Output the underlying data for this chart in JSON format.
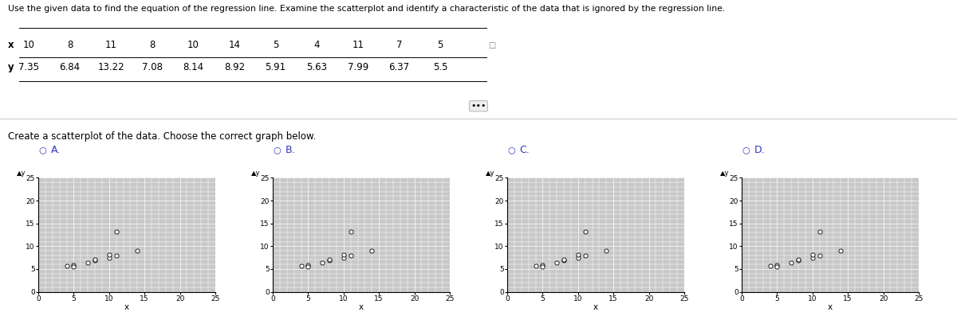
{
  "title_text": "Use the given data to find the equation of the regression line. Examine the scatterplot and identify a characteristic of the data that is ignored by the regression line.",
  "instruction": "Create a scatterplot of the data. Choose the correct graph below.",
  "x_data_A": [
    10,
    8,
    11,
    8,
    10,
    14,
    5,
    4,
    11,
    7,
    5
  ],
  "y_data_A": [
    7.35,
    6.84,
    13.22,
    7.08,
    8.14,
    8.92,
    5.91,
    5.63,
    7.99,
    6.37,
    5.5
  ],
  "x_data_B": [
    10,
    8,
    11,
    8,
    10,
    14,
    5,
    4,
    11,
    7,
    5
  ],
  "y_data_B": [
    7.35,
    6.84,
    13.22,
    7.08,
    8.14,
    8.92,
    5.91,
    5.63,
    7.99,
    6.37,
    5.5
  ],
  "x_data_C": [
    10,
    8,
    11,
    8,
    10,
    14,
    5,
    4,
    11,
    7,
    5
  ],
  "y_data_C": [
    7.35,
    6.84,
    13.22,
    7.08,
    8.14,
    8.92,
    5.91,
    5.63,
    7.99,
    6.37,
    5.5
  ],
  "x_data_D": [
    10,
    8,
    11,
    8,
    10,
    14,
    5,
    4,
    11,
    7,
    5
  ],
  "y_data_D": [
    7.35,
    6.84,
    13.22,
    7.08,
    8.14,
    8.92,
    5.91,
    5.63,
    7.99,
    6.37,
    5.5
  ],
  "x_table": [
    10,
    8,
    11,
    8,
    10,
    14,
    5,
    4,
    11,
    7,
    5
  ],
  "y_table": [
    7.35,
    6.84,
    13.22,
    7.08,
    8.14,
    8.92,
    5.91,
    5.63,
    7.99,
    6.37,
    5.5
  ],
  "xlim": [
    0,
    25
  ],
  "ylim": [
    0,
    25
  ],
  "xticks": [
    0,
    5,
    10,
    15,
    20,
    25
  ],
  "yticks": [
    0,
    5,
    10,
    15,
    20,
    25
  ],
  "labels": [
    "A.",
    "B.",
    "C.",
    "D."
  ],
  "plot_bg": "#c8c8c8",
  "marker_color": "white",
  "marker_edge": "black",
  "radio_color": "#3333bb",
  "font_size_title": 7.8,
  "font_size_instruction": 8.5,
  "font_size_label": 9.0,
  "font_size_tick": 6.5,
  "font_size_table": 8.5,
  "grid_color": "white",
  "separator_line_y": 0.62
}
